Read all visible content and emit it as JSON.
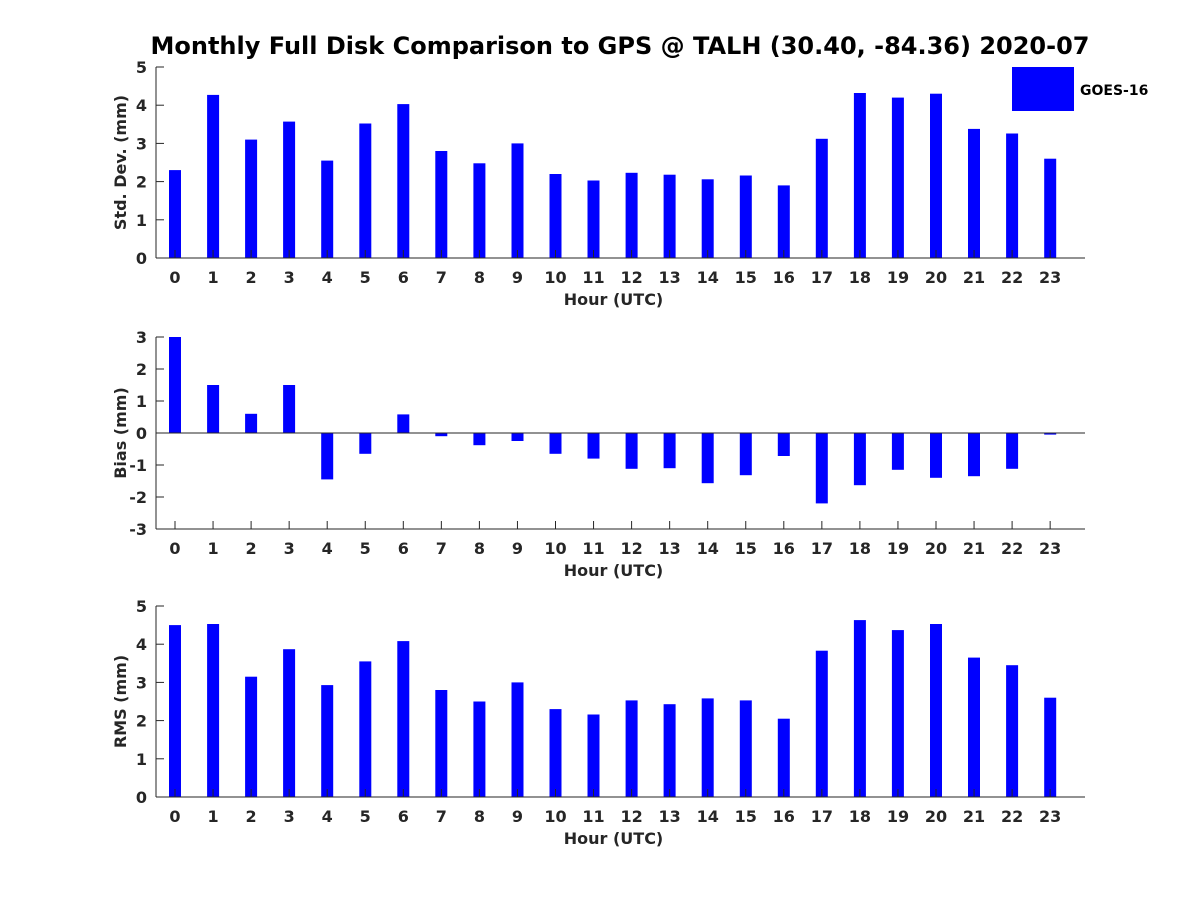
{
  "chart_data": {
    "title": "Monthly Full Disk Comparison to GPS @ TALH (30.40, -84.36) 2020-07",
    "type": "bar",
    "legend": {
      "label": "GOES-16",
      "position": "top-right",
      "color": "#0000ff"
    },
    "categories": [
      "0",
      "1",
      "2",
      "3",
      "4",
      "5",
      "6",
      "7",
      "8",
      "9",
      "10",
      "11",
      "12",
      "13",
      "14",
      "15",
      "16",
      "17",
      "18",
      "19",
      "20",
      "21",
      "22",
      "23"
    ],
    "panels": [
      {
        "ylabel": "Std. Dev. (mm)",
        "xlabel": "Hour (UTC)",
        "ylim": [
          0,
          5
        ],
        "yticks": [
          "0",
          "1",
          "2",
          "3",
          "4",
          "5"
        ],
        "values": [
          2.3,
          4.27,
          3.1,
          3.57,
          2.55,
          3.52,
          4.03,
          2.8,
          2.48,
          3.0,
          2.2,
          2.03,
          2.23,
          2.18,
          2.06,
          2.16,
          1.9,
          3.12,
          4.32,
          4.2,
          4.3,
          3.38,
          3.26,
          2.6
        ]
      },
      {
        "ylabel": "Bias (mm)",
        "xlabel": "Hour (UTC)",
        "ylim": [
          -3,
          3
        ],
        "yticks": [
          "-3",
          "-2",
          "-1",
          "0",
          "1",
          "2",
          "3"
        ],
        "values": [
          3.0,
          1.5,
          0.6,
          1.5,
          -1.45,
          -0.65,
          0.58,
          -0.1,
          -0.38,
          -0.25,
          -0.65,
          -0.8,
          -1.12,
          -1.1,
          -1.57,
          -1.32,
          -0.72,
          -2.2,
          -1.63,
          -1.15,
          -1.4,
          -1.35,
          -1.12,
          -0.05
        ]
      },
      {
        "ylabel": "RMS (mm)",
        "xlabel": "Hour (UTC)",
        "ylim": [
          0,
          5
        ],
        "yticks": [
          "0",
          "1",
          "2",
          "3",
          "4",
          "5"
        ],
        "values": [
          4.5,
          4.53,
          3.15,
          3.87,
          2.93,
          3.55,
          4.08,
          2.8,
          2.5,
          3.0,
          2.3,
          2.16,
          2.53,
          2.43,
          2.58,
          2.53,
          2.05,
          3.83,
          4.63,
          4.37,
          4.53,
          3.65,
          3.45,
          2.6
        ]
      }
    ]
  }
}
